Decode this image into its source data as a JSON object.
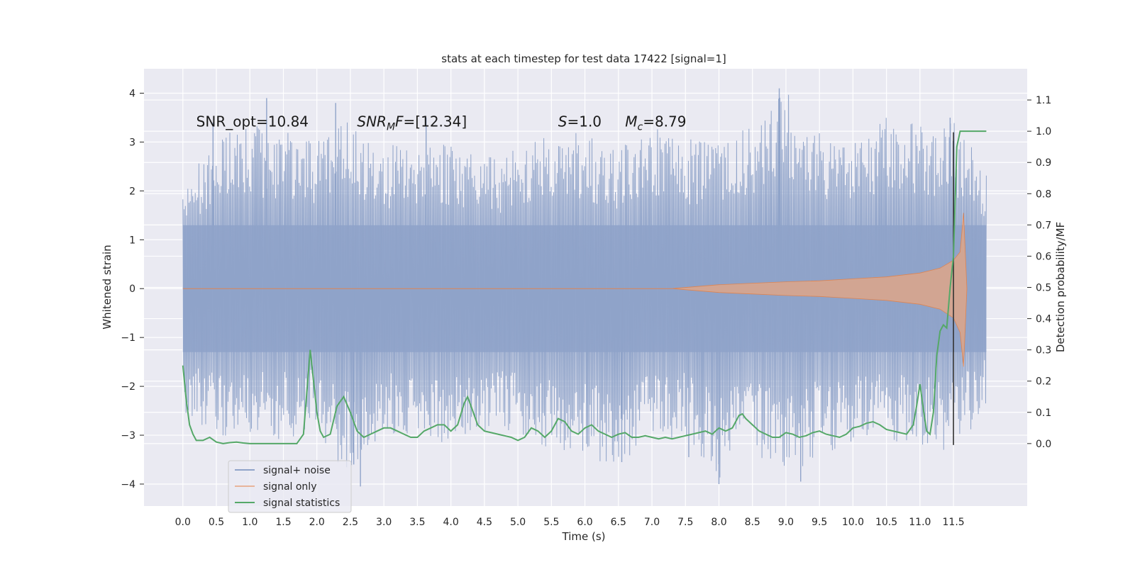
{
  "chart_data": {
    "type": "line",
    "title": "stats at each timestep for test data 17422 [signal=1]",
    "xlabel": "Time (s)",
    "ylabel": "Whitened strain",
    "ylabel_right": "Detection probability/MF",
    "xlim": [
      -0.58,
      12.6
    ],
    "ylim": [
      -4.45,
      4.5
    ],
    "ylim_right": [
      -0.2,
      1.2
    ],
    "x_ticks": [
      0.0,
      0.5,
      1.0,
      1.5,
      2.0,
      2.5,
      3.0,
      3.5,
      4.0,
      4.5,
      5.0,
      5.5,
      6.0,
      6.5,
      7.0,
      7.5,
      8.0,
      8.5,
      9.0,
      9.5,
      10.0,
      10.5,
      11.0,
      11.5
    ],
    "x_tick_labels": [
      "0.0",
      "0.5",
      "1.0",
      "1.5",
      "2.0",
      "2.5",
      "3.0",
      "3.5",
      "4.0",
      "4.5",
      "5.0",
      "5.5",
      "6.0",
      "6.5",
      "7.0",
      "7.5",
      "8.0",
      "8.5",
      "9.0",
      "9.5",
      "10.0",
      "10.5",
      "11.0",
      "11.5"
    ],
    "y_ticks": [
      -4,
      -3,
      -2,
      -1,
      0,
      1,
      2,
      3,
      4
    ],
    "y_tick_labels": [
      "−4",
      "−3",
      "−2",
      "−1",
      "0",
      "1",
      "2",
      "3",
      "4"
    ],
    "y_right_ticks": [
      0.0,
      0.1,
      0.2,
      0.3,
      0.4,
      0.5,
      0.6,
      0.7,
      0.8,
      0.9,
      1.0,
      1.1
    ],
    "y_right_tick_labels": [
      "0.0",
      "0.1",
      "0.2",
      "0.3",
      "0.4",
      "0.5",
      "0.6",
      "0.7",
      "0.8",
      "0.9",
      "1.0",
      "1.1"
    ],
    "grid": true,
    "legend_position": "lower-left",
    "series": [
      {
        "name": "signal+ noise",
        "color": "#4c72b0",
        "axis": "left",
        "description_of_envelope": "dense noisy strain between about -4 and 4",
        "envelope": {
          "x": [
            0.0,
            0.5,
            1.0,
            1.5,
            2.0,
            2.5,
            3.0,
            3.5,
            4.0,
            4.5,
            5.0,
            5.5,
            6.0,
            6.5,
            7.0,
            7.5,
            8.0,
            8.5,
            9.0,
            9.5,
            10.0,
            10.5,
            11.0,
            11.5,
            11.99
          ],
          "upper": [
            2.3,
            3.2,
            3.4,
            3.3,
            3.0,
            3.5,
            2.9,
            3.1,
            3.1,
            2.7,
            2.9,
            3.2,
            3.2,
            2.9,
            3.3,
            3.1,
            3.0,
            3.4,
            4.1,
            3.2,
            3.2,
            3.6,
            3.4,
            3.5,
            2.4
          ],
          "lower": [
            -2.5,
            -3.1,
            -3.0,
            -3.1,
            -3.0,
            -3.9,
            -2.9,
            -3.3,
            -3.2,
            -3.0,
            -3.0,
            -3.3,
            -3.5,
            -3.6,
            -3.2,
            -3.1,
            -3.9,
            -3.3,
            -3.9,
            -3.4,
            -3.2,
            -3.1,
            -3.2,
            -3.4,
            -2.5
          ]
        },
        "spikes": [
          {
            "x": 0.45,
            "y": 3.4
          },
          {
            "x": 1.25,
            "y": 3.9
          },
          {
            "x": 2.28,
            "y": 3.8
          },
          {
            "x": 3.63,
            "y": 3.5
          },
          {
            "x": 8.9,
            "y": 4.1
          },
          {
            "x": 11.45,
            "y": 3.5
          },
          {
            "x": 2.65,
            "y": -4.05
          },
          {
            "x": 2.55,
            "y": -3.6
          },
          {
            "x": 8.0,
            "y": -4.0
          },
          {
            "x": 9.22,
            "y": -3.95
          },
          {
            "x": 7.55,
            "y": -3.45
          },
          {
            "x": 6.55,
            "y": -3.55
          }
        ]
      },
      {
        "name": "signal only",
        "color": "#dd8452",
        "axis": "left",
        "envelope": {
          "x": [
            7.3,
            8.0,
            8.5,
            9.0,
            9.5,
            10.0,
            10.5,
            11.0,
            11.3,
            11.5,
            11.6,
            11.65,
            11.7
          ],
          "upper": [
            0.0,
            0.08,
            0.11,
            0.14,
            0.16,
            0.2,
            0.24,
            0.32,
            0.42,
            0.58,
            0.75,
            1.55,
            0.0
          ],
          "lower": [
            0.0,
            -0.08,
            -0.11,
            -0.14,
            -0.16,
            -0.2,
            -0.24,
            -0.32,
            -0.42,
            -0.6,
            -0.9,
            -1.6,
            0.0
          ]
        }
      },
      {
        "name": "signal statistics",
        "color": "#55a868",
        "axis": "right",
        "x": [
          0.0,
          0.05,
          0.1,
          0.15,
          0.2,
          0.25,
          0.3,
          0.4,
          0.5,
          0.6,
          0.7,
          0.8,
          0.9,
          1.0,
          1.1,
          1.2,
          1.3,
          1.4,
          1.5,
          1.6,
          1.7,
          1.8,
          1.9,
          2.0,
          2.05,
          2.1,
          2.2,
          2.3,
          2.4,
          2.5,
          2.6,
          2.7,
          2.8,
          2.9,
          3.0,
          3.1,
          3.2,
          3.3,
          3.4,
          3.5,
          3.6,
          3.7,
          3.8,
          3.9,
          4.0,
          4.1,
          4.2,
          4.25,
          4.3,
          4.4,
          4.5,
          4.6,
          4.7,
          4.8,
          4.9,
          5.0,
          5.1,
          5.2,
          5.3,
          5.4,
          5.5,
          5.6,
          5.7,
          5.8,
          5.9,
          6.0,
          6.1,
          6.2,
          6.3,
          6.4,
          6.5,
          6.6,
          6.7,
          6.8,
          6.9,
          7.0,
          7.1,
          7.2,
          7.3,
          7.4,
          7.5,
          7.6,
          7.7,
          7.8,
          7.9,
          8.0,
          8.1,
          8.2,
          8.3,
          8.35,
          8.4,
          8.5,
          8.6,
          8.7,
          8.8,
          8.9,
          9.0,
          9.1,
          9.2,
          9.3,
          9.4,
          9.5,
          9.6,
          9.7,
          9.8,
          9.9,
          10.0,
          10.1,
          10.2,
          10.3,
          10.4,
          10.5,
          10.6,
          10.7,
          10.8,
          10.9,
          10.95,
          11.0,
          11.05,
          11.1,
          11.15,
          11.2,
          11.25,
          11.3,
          11.35,
          11.4,
          11.45,
          11.5,
          11.55,
          11.6,
          11.65,
          11.7,
          11.8,
          11.9,
          11.99
        ],
        "values": [
          0.25,
          0.14,
          0.06,
          0.03,
          0.01,
          0.01,
          0.01,
          0.02,
          0.005,
          0.0,
          0.003,
          0.005,
          0.002,
          0.0,
          0.0,
          0.0,
          0.0,
          0.0,
          0.0,
          0.0,
          0.0,
          0.03,
          0.3,
          0.1,
          0.04,
          0.02,
          0.03,
          0.12,
          0.15,
          0.1,
          0.04,
          0.02,
          0.03,
          0.04,
          0.05,
          0.05,
          0.04,
          0.03,
          0.02,
          0.02,
          0.04,
          0.05,
          0.06,
          0.06,
          0.04,
          0.06,
          0.13,
          0.15,
          0.12,
          0.06,
          0.04,
          0.035,
          0.03,
          0.025,
          0.02,
          0.01,
          0.02,
          0.05,
          0.04,
          0.02,
          0.04,
          0.08,
          0.07,
          0.04,
          0.03,
          0.05,
          0.06,
          0.04,
          0.03,
          0.02,
          0.03,
          0.035,
          0.02,
          0.02,
          0.025,
          0.02,
          0.015,
          0.02,
          0.015,
          0.02,
          0.025,
          0.03,
          0.035,
          0.04,
          0.03,
          0.05,
          0.04,
          0.05,
          0.09,
          0.095,
          0.08,
          0.06,
          0.04,
          0.03,
          0.02,
          0.02,
          0.035,
          0.03,
          0.02,
          0.025,
          0.035,
          0.04,
          0.03,
          0.025,
          0.02,
          0.03,
          0.05,
          0.055,
          0.065,
          0.07,
          0.06,
          0.045,
          0.04,
          0.035,
          0.03,
          0.06,
          0.12,
          0.19,
          0.11,
          0.04,
          0.03,
          0.1,
          0.28,
          0.36,
          0.38,
          0.37,
          0.5,
          0.6,
          0.95,
          1.0,
          1.0,
          1.0,
          1.0,
          1.0,
          1.0
        ]
      }
    ],
    "vertical_marker": {
      "x": 11.5,
      "ymin": -3.2,
      "ymax": 3.2,
      "color": "#333333"
    },
    "annotations": [
      {
        "text": "SNR_opt=10.84",
        "x": 0.2,
        "y": 3.32,
        "italic": false
      },
      {
        "text": "SNRMF=[12.34]",
        "x": 2.6,
        "y": 3.32,
        "italic": "math"
      },
      {
        "text": "S=1.0",
        "x": 5.6,
        "y": 3.32,
        "italic": "math"
      },
      {
        "text": "Mc=8.79",
        "x": 6.6,
        "y": 3.32,
        "italic": "math"
      }
    ],
    "legend": [
      "signal+ noise",
      "signal only",
      "signal statistics"
    ]
  }
}
